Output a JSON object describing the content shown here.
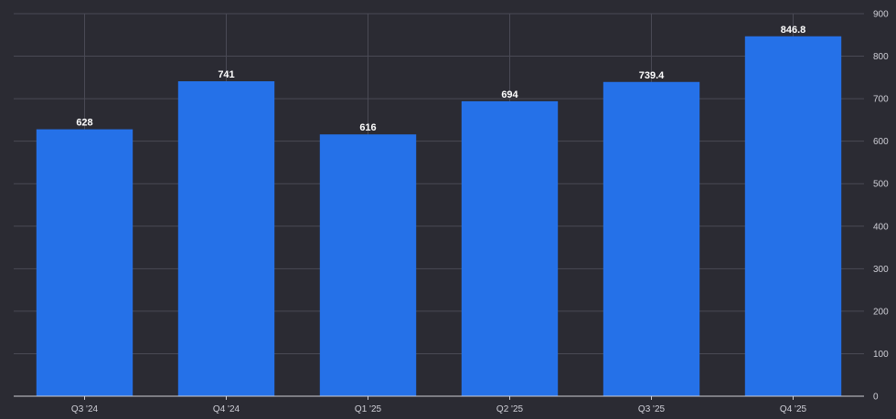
{
  "chart_data": {
    "type": "bar",
    "categories": [
      "Q3 '24",
      "Q4 '24",
      "Q1 '25",
      "Q2 '25",
      "Q3 '25",
      "Q4 '25"
    ],
    "values": [
      628,
      741,
      616,
      694,
      739.4,
      846.8
    ],
    "data_labels": [
      "628",
      "741",
      "616",
      "694",
      "739.4",
      "846.8"
    ],
    "title": "",
    "xlabel": "",
    "ylabel": "",
    "ylim": [
      0,
      900
    ],
    "yticks": [
      0,
      100,
      200,
      300,
      400,
      500,
      600,
      700,
      800,
      900
    ],
    "y_axis_position": "right",
    "grid": true,
    "legend": "none",
    "bar_color": "#2571e8",
    "background_color": "#2b2b33",
    "grid_color": "#4a4a55"
  }
}
